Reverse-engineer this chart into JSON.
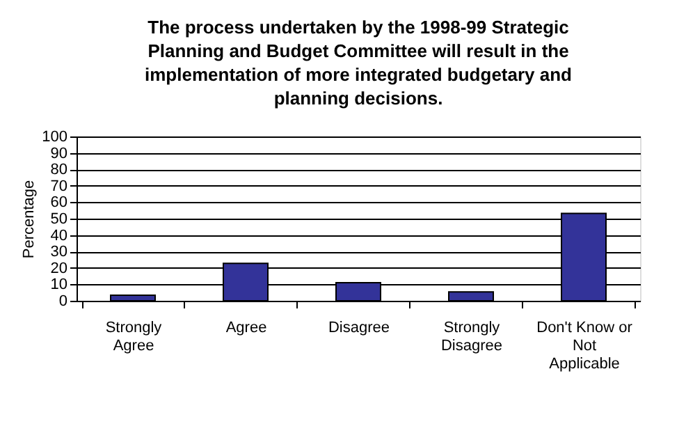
{
  "chart_data": {
    "type": "bar",
    "title": "The process undertaken by the 1998-99 Strategic Planning and Budget Committee will result in the implementation of more integrated budgetary and planning decisions.",
    "ylabel": "Percentage",
    "categories": [
      "Strongly Agree",
      "Agree",
      "Disagree",
      "Strongly Disagree",
      "Don't Know or Not Applicable"
    ],
    "values": [
      3.4,
      22.8,
      11,
      5.4,
      53.2
    ],
    "color": "#333399",
    "ylim": [
      0,
      100
    ],
    "yticks": [
      0,
      10,
      20,
      30,
      40,
      50,
      60,
      70,
      80,
      90,
      100
    ],
    "grid": "y",
    "legend": false
  }
}
